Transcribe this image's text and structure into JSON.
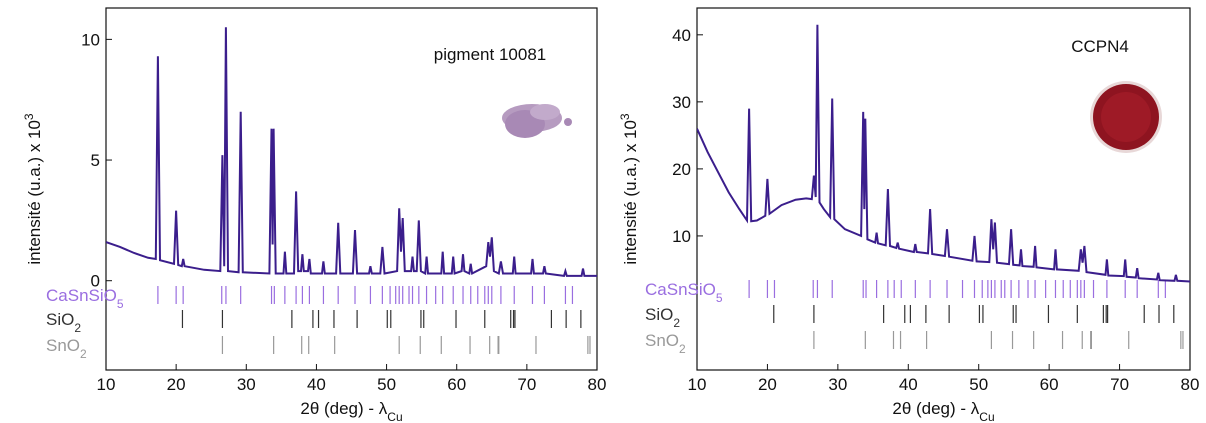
{
  "chart_data": [
    {
      "type": "line",
      "annotation": "pigment 10081",
      "ylabel": "intensité (u.a.) x 10",
      "ylabel_superscript": "3",
      "xlabel": "2θ (deg) - λ",
      "xlabel_subscript": "Cu",
      "xlim": [
        10,
        80
      ],
      "xticks": [
        10,
        20,
        30,
        40,
        50,
        60,
        70,
        80
      ],
      "ylim": [
        -3.7,
        11.3
      ],
      "yticks": [
        0,
        5,
        10
      ],
      "x": [
        10,
        12,
        14,
        16,
        17.1,
        17.4,
        17.7,
        19.7,
        20.0,
        20.3,
        20.8,
        21.0,
        21.2,
        24,
        26.3,
        26.6,
        26.85,
        27.1,
        27.4,
        28.9,
        29.2,
        29.5,
        33.3,
        33.6,
        33.75,
        33.9,
        34.2,
        35.3,
        35.5,
        35.7,
        36.8,
        37.1,
        37.4,
        37.8,
        38.0,
        38.2,
        38.8,
        39.0,
        39.2,
        40.8,
        41.0,
        41.2,
        42.8,
        43.1,
        43.4,
        45.2,
        45.5,
        45.8,
        47.5,
        47.7,
        47.9,
        49.1,
        49.4,
        49.7,
        51.5,
        51.8,
        52.05,
        52.3,
        52.6,
        53.5,
        53.7,
        53.9,
        54.3,
        54.6,
        54.9,
        55.5,
        55.7,
        55.9,
        57.8,
        58.0,
        58.2,
        59.3,
        59.5,
        59.7,
        60.7,
        60.9,
        61.1,
        61.8,
        62.0,
        62.2,
        64.2,
        64.5,
        64.75,
        65.0,
        65.3,
        66,
        66.3,
        66.6,
        68.0,
        68.2,
        68.4,
        70.6,
        70.8,
        71.0,
        72.3,
        72.5,
        72.7,
        75.3,
        75.5,
        75.7,
        77.8,
        78.0,
        78.2,
        80
      ],
      "series": [
        {
          "color": "#3b1e8c",
          "values": [
            1.6,
            1.4,
            1.15,
            0.95,
            0.9,
            9.3,
            0.85,
            0.7,
            2.9,
            0.65,
            0.6,
            0.9,
            0.6,
            0.45,
            0.4,
            5.2,
            0.6,
            10.5,
            0.4,
            0.35,
            7.0,
            0.35,
            0.3,
            6.3,
            1.5,
            6.3,
            0.3,
            0.3,
            1.2,
            0.3,
            0.3,
            3.7,
            0.4,
            0.4,
            1.1,
            0.4,
            0.4,
            0.9,
            0.3,
            0.3,
            0.8,
            0.3,
            0.3,
            2.4,
            0.3,
            0.3,
            2.1,
            0.3,
            0.3,
            0.6,
            0.3,
            0.3,
            1.4,
            0.3,
            0.4,
            3.0,
            1.2,
            2.6,
            0.4,
            0.4,
            1.0,
            0.4,
            0.4,
            2.5,
            0.4,
            0.3,
            1.0,
            0.3,
            0.3,
            1.2,
            0.3,
            0.3,
            1.0,
            0.3,
            0.4,
            1.1,
            0.4,
            0.3,
            0.7,
            0.3,
            0.6,
            1.6,
            1.0,
            1.8,
            0.4,
            0.3,
            0.8,
            0.3,
            0.3,
            1.0,
            0.3,
            0.3,
            0.9,
            0.3,
            0.3,
            0.6,
            0.3,
            0.2,
            0.4,
            0.2,
            0.2,
            0.5,
            0.2,
            0.2
          ]
        }
      ],
      "reference_phases": [
        {
          "name": "CaSnSiO",
          "subscript": "5",
          "color": "#9a6ee0",
          "positions": [
            17.4,
            20,
            21,
            26.5,
            27.1,
            29.2,
            33.6,
            34,
            35.5,
            37.1,
            38,
            39,
            41,
            43.1,
            45.5,
            47.7,
            49.4,
            50.5,
            51.3,
            51.8,
            52.3,
            53.2,
            53.7,
            54.6,
            55.7,
            57,
            58,
            59.5,
            60.9,
            62,
            63,
            64,
            64.5,
            65,
            66.3,
            68.2,
            70.8,
            72.5,
            75.5,
            76.5
          ]
        },
        {
          "name": "SiO",
          "subscript": "2",
          "color": "#333333",
          "positions": [
            20.9,
            26.6,
            36.5,
            39.5,
            40.3,
            42.5,
            45.8,
            50.1,
            50.6,
            54.9,
            55.3,
            59.9,
            64.0,
            67.7,
            68.1,
            68.3,
            73.5,
            75.6,
            77.7
          ]
        },
        {
          "name": "SnO",
          "subscript": "2",
          "color": "#999999",
          "positions": [
            26.6,
            33.9,
            37.9,
            38.9,
            42.6,
            51.8,
            54.8,
            57.8,
            61.9,
            64.7,
            65.9,
            66.0,
            71.3,
            78.7,
            79.0
          ]
        }
      ]
    },
    {
      "type": "line",
      "annotation": "CCPN4",
      "ylabel": "intensité (u.a.) x 10",
      "ylabel_superscript": "3",
      "xlabel": "2θ (deg) - λ",
      "xlabel_subscript": "Cu",
      "xlim": [
        10,
        80
      ],
      "xticks": [
        10,
        20,
        30,
        40,
        50,
        60,
        70,
        80
      ],
      "ylim": [
        -10,
        44
      ],
      "yticks": [
        10,
        20,
        30,
        40
      ],
      "x": [
        10,
        11.5,
        13,
        14.5,
        16,
        17.1,
        17.4,
        17.7,
        18.5,
        19.7,
        20.0,
        20.3,
        22,
        24,
        25.5,
        26.3,
        26.6,
        26.85,
        27.1,
        27.4,
        28,
        28.9,
        29.2,
        29.5,
        31,
        33.3,
        33.6,
        33.75,
        33.9,
        34.2,
        35.3,
        35.5,
        35.7,
        36.8,
        37.1,
        37.4,
        38.3,
        38.5,
        38.7,
        40.8,
        41,
        41.2,
        42.8,
        43.1,
        43.4,
        45.2,
        45.5,
        45.8,
        49.1,
        49.4,
        49.7,
        51.5,
        51.8,
        52.05,
        52.3,
        52.6,
        54.3,
        54.6,
        54.9,
        55.8,
        56,
        56.2,
        57.8,
        58,
        58.2,
        60.7,
        60.9,
        61.1,
        64.2,
        64.5,
        64.75,
        65,
        65.3,
        68,
        68.2,
        68.4,
        70.6,
        70.8,
        71,
        72.3,
        72.5,
        72.7,
        75.3,
        75.5,
        75.7,
        77.8,
        78,
        78.2,
        80
      ],
      "series": [
        {
          "color": "#3b1e8c",
          "values": [
            26,
            22.5,
            19.5,
            16.5,
            14,
            12.3,
            29,
            12.2,
            12.3,
            13,
            18.5,
            13.3,
            14.6,
            15.4,
            15.6,
            15.5,
            19,
            15.8,
            41.5,
            15,
            14,
            12.8,
            30.5,
            12.5,
            11,
            10,
            28.5,
            14,
            27.5,
            9.5,
            9,
            10.5,
            8.9,
            8.6,
            17,
            8.5,
            8.2,
            9,
            8.1,
            7.6,
            8.8,
            7.6,
            7.4,
            14,
            7.3,
            7,
            11,
            6.9,
            6.3,
            10,
            6.2,
            6.1,
            12.5,
            8,
            12,
            6,
            5.8,
            11,
            5.7,
            5.6,
            8,
            5.5,
            5.4,
            8.5,
            5.3,
            5,
            8,
            5,
            4.8,
            8,
            6,
            8.5,
            4.6,
            4.2,
            6.5,
            4.1,
            4,
            6.5,
            3.9,
            3.8,
            5.2,
            3.7,
            3.5,
            4.5,
            3.4,
            3.3,
            4.2,
            3.3,
            3.2
          ]
        }
      ],
      "reference_phases": [
        {
          "name": "CaSnSiO",
          "subscript": "5",
          "color": "#9a6ee0",
          "positions": [
            17.4,
            20,
            21,
            26.5,
            27.1,
            29.2,
            33.6,
            34,
            35.5,
            37.1,
            38,
            39,
            41,
            43.1,
            45.5,
            47.7,
            49.4,
            50.5,
            51.3,
            51.8,
            52.3,
            53.2,
            53.7,
            54.6,
            55.7,
            57,
            58,
            59.5,
            60.9,
            62,
            63,
            64,
            64.5,
            65,
            66.3,
            68.2,
            70.8,
            72.5,
            75.5,
            76.5
          ]
        },
        {
          "name": "SiO",
          "subscript": "2",
          "color": "#333333",
          "positions": [
            20.9,
            26.6,
            36.5,
            39.5,
            40.3,
            42.5,
            45.8,
            50.1,
            50.6,
            54.9,
            55.3,
            59.9,
            64.0,
            67.7,
            68.1,
            68.3,
            73.5,
            75.6,
            77.7
          ]
        },
        {
          "name": "SnO",
          "subscript": "2",
          "color": "#999999",
          "positions": [
            26.6,
            33.9,
            37.9,
            38.9,
            42.6,
            51.8,
            54.8,
            57.8,
            61.9,
            64.7,
            65.9,
            66.0,
            71.3,
            78.7,
            79.0
          ]
        }
      ]
    }
  ]
}
